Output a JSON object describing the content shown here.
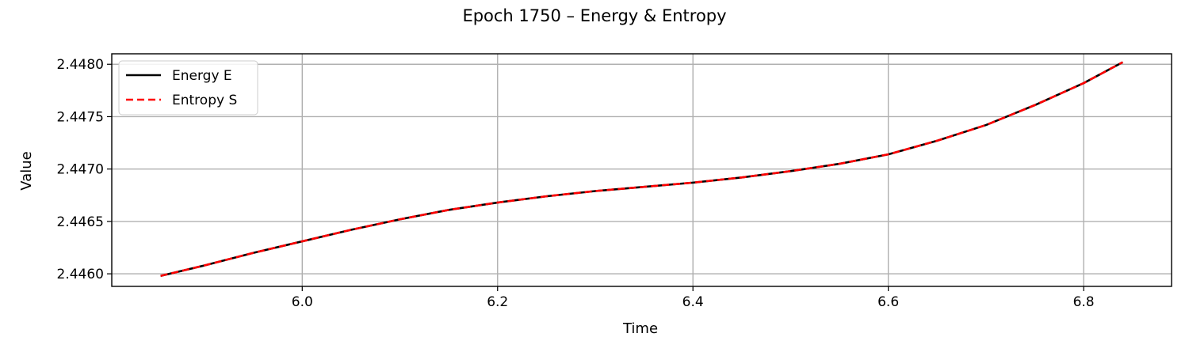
{
  "chart_data": {
    "type": "line",
    "title": "Epoch 1750 – Energy & Entropy",
    "xlabel": "Time",
    "ylabel": "Value",
    "xlim": [
      5.805,
      6.89
    ],
    "ylim": [
      2.44588,
      2.4481
    ],
    "xticks": [
      6.0,
      6.2,
      6.4,
      6.6,
      6.8
    ],
    "xtick_labels": [
      "6.0",
      "6.2",
      "6.4",
      "6.6",
      "6.8"
    ],
    "yticks": [
      2.446,
      2.4465,
      2.447,
      2.4475,
      2.448
    ],
    "ytick_labels": [
      "2.4460",
      "2.4465",
      "2.4470",
      "2.4475",
      "2.4480"
    ],
    "grid": true,
    "legend_position": "upper-left",
    "x": [
      5.855,
      5.9,
      5.95,
      6.0,
      6.05,
      6.1,
      6.15,
      6.2,
      6.25,
      6.3,
      6.35,
      6.4,
      6.45,
      6.5,
      6.55,
      6.6,
      6.65,
      6.7,
      6.75,
      6.8,
      6.84
    ],
    "series": [
      {
        "name": "Energy E",
        "color": "#000000",
        "dash": "solid",
        "values": [
          2.44598,
          2.44608,
          2.4462,
          2.44631,
          2.44642,
          2.44652,
          2.44661,
          2.44668,
          2.44674,
          2.44679,
          2.44683,
          2.44687,
          2.44692,
          2.44698,
          2.44705,
          2.44714,
          2.44727,
          2.44742,
          2.44761,
          2.44782,
          2.44802
        ]
      },
      {
        "name": "Entropy S",
        "color": "#ff0000",
        "dash": "dashed",
        "values": [
          2.44598,
          2.44608,
          2.4462,
          2.44631,
          2.44642,
          2.44652,
          2.44661,
          2.44668,
          2.44674,
          2.44679,
          2.44683,
          2.44687,
          2.44692,
          2.44698,
          2.44705,
          2.44714,
          2.44727,
          2.44742,
          2.44761,
          2.44782,
          2.44802
        ]
      }
    ]
  }
}
